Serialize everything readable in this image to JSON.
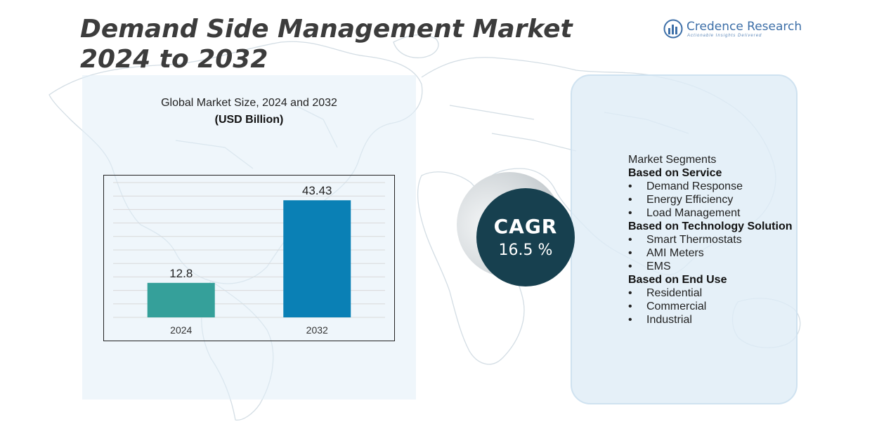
{
  "title": "Demand Side Management Market 2024 to 2032",
  "logo": {
    "icon": "credence-bars-logo-icon",
    "name": "Credence Research",
    "tagline": "Actionable Insights Delivered"
  },
  "colors": {
    "bar_2024": "#35a09a",
    "bar_2032": "#0a80b5",
    "cagr_circle": "#17404f",
    "panel_bg": "#e1eef8"
  },
  "market_panel": {
    "title": "Global Market Size, 2024 and 2032",
    "subtitle": "(USD Billion)"
  },
  "chart_data": {
    "type": "bar",
    "categories": [
      "2024",
      "2032"
    ],
    "values": [
      12.8,
      43.43
    ],
    "data_labels": [
      "12.8",
      "43.43"
    ],
    "title": "Global Market Size, 2024 and 2032",
    "subtitle": "(USD Billion)",
    "xlabel": "",
    "ylabel": "",
    "ylim": [
      0,
      50
    ],
    "grid": true,
    "legend": "none"
  },
  "cagr": {
    "label": "CAGR",
    "value": "16.5 %"
  },
  "segments": {
    "heading": "Market Segments",
    "groups": [
      {
        "title": "Based on Service",
        "items": [
          "Demand Response",
          "Energy Efficiency",
          "Load Management"
        ]
      },
      {
        "title": "Based on Technology Solution",
        "items": [
          "Smart Thermostats",
          "AMI Meters",
          "EMS"
        ]
      },
      {
        "title": "Based on End Use",
        "items": [
          "Residential",
          "Commercial",
          "Industrial"
        ]
      }
    ]
  }
}
